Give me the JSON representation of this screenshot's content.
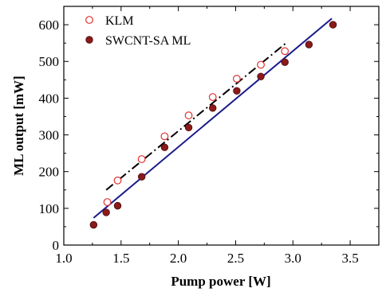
{
  "chart_data": {
    "type": "scatter",
    "xlabel": "Pump power [W]",
    "ylabel": "ML output [mW]",
    "xlim": [
      1.0,
      3.75
    ],
    "ylim": [
      0,
      650
    ],
    "xticks": [
      "1.0",
      "1.5",
      "2.0",
      "2.5",
      "3.0",
      "3.5"
    ],
    "yticks": [
      "0",
      "100",
      "200",
      "300",
      "400",
      "500",
      "600"
    ],
    "legend_position": "top-left",
    "grid": false,
    "series": [
      {
        "name": "KLM",
        "marker": "open-circle",
        "color": "#e0302f",
        "x": [
          1.38,
          1.47,
          1.68,
          1.88,
          2.09,
          2.3,
          2.51,
          2.72,
          2.93
        ],
        "y": [
          117,
          176,
          234,
          296,
          353,
          403,
          453,
          491,
          528
        ]
      },
      {
        "name": "SWCNT-SA ML",
        "marker": "filled-circle",
        "color": "#8b1a1a",
        "x": [
          1.26,
          1.37,
          1.47,
          1.68,
          1.88,
          2.09,
          2.3,
          2.51,
          2.72,
          2.93,
          3.14,
          3.35
        ],
        "y": [
          55,
          89,
          107,
          186,
          266,
          320,
          373,
          420,
          459,
          498,
          546,
          600
        ]
      }
    ],
    "fits": [
      {
        "series": "KLM",
        "style": "dash-dot",
        "color": "#000000",
        "x": [
          1.37,
          2.94
        ],
        "y": [
          150,
          550
        ]
      },
      {
        "series": "SWCNT-SA ML",
        "style": "solid",
        "color": "#1a1a8c",
        "x": [
          1.26,
          3.34
        ],
        "y": [
          74,
          617
        ]
      }
    ]
  }
}
